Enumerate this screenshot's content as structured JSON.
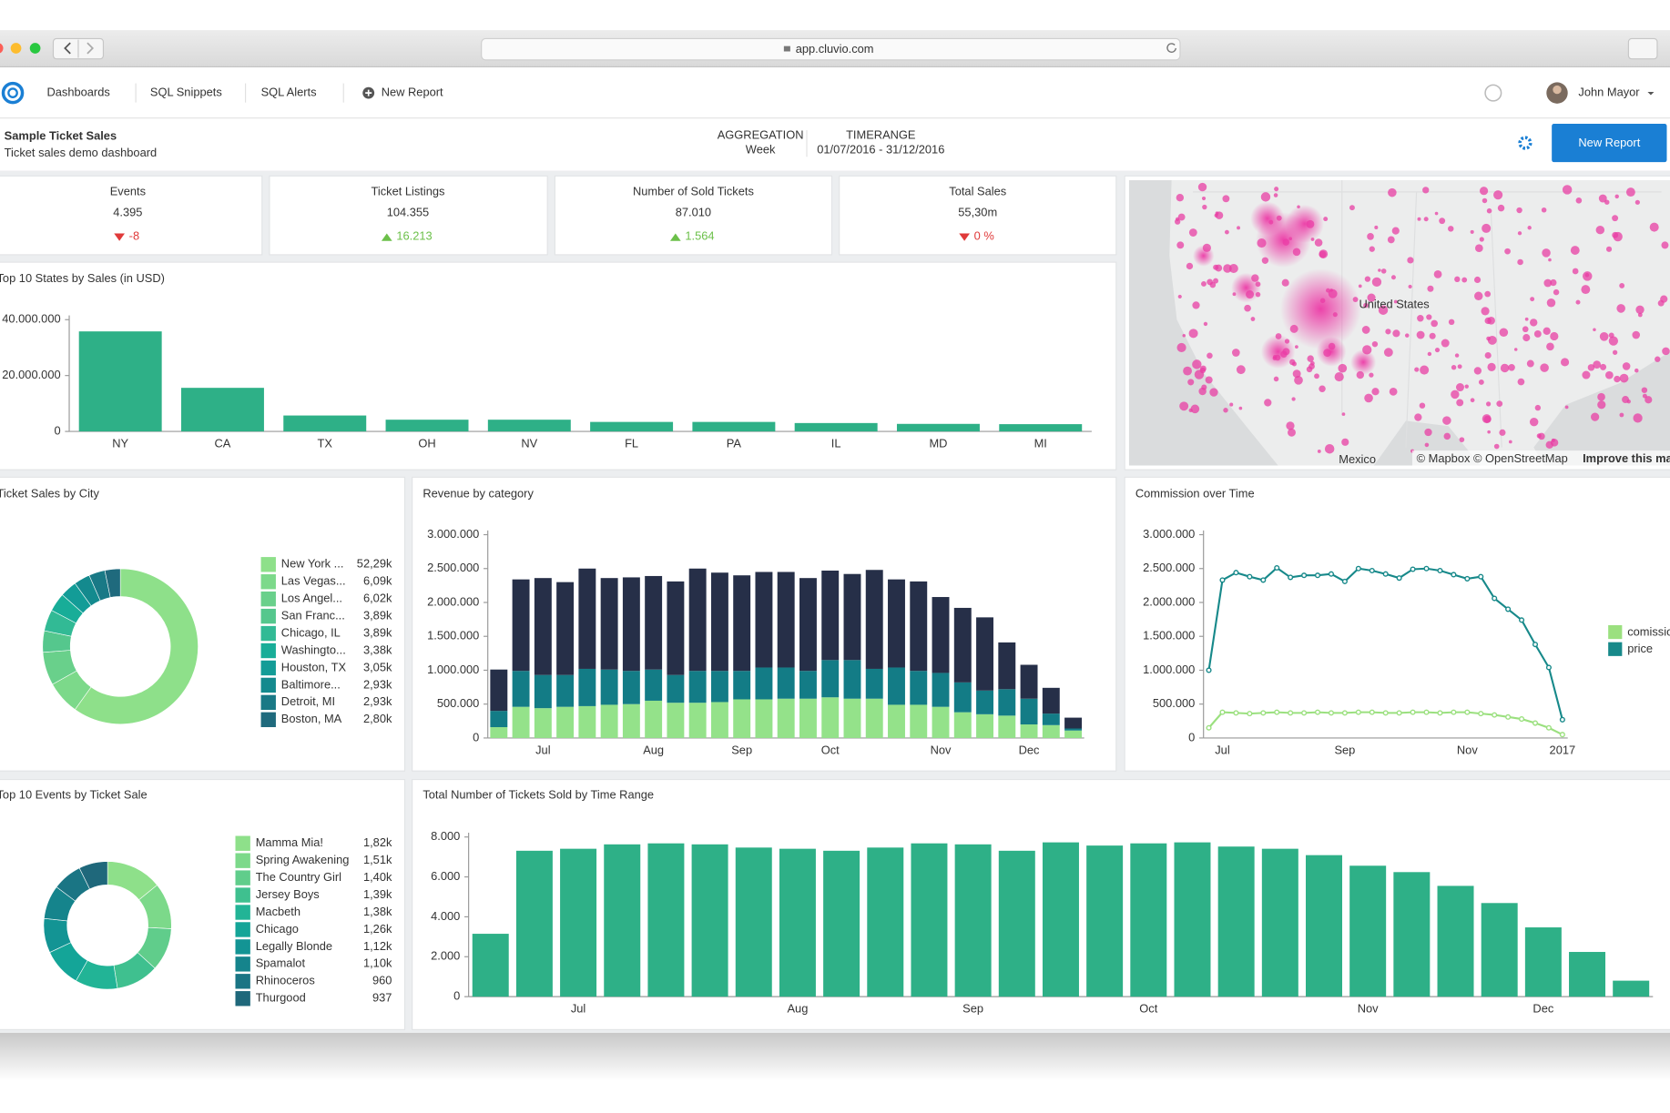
{
  "browser": {
    "url": "app.cluvio.com"
  },
  "nav": {
    "items": [
      "Dashboards",
      "SQL Snippets",
      "SQL Alerts",
      "New Report"
    ],
    "user": "John Mayor"
  },
  "header": {
    "title": "Sample Ticket Sales",
    "subtitle": "Ticket sales demo dashboard",
    "aggregation_label": "AGGREGATION",
    "aggregation": "Week",
    "timerange_label": "TIMERANGE",
    "timerange": "01/07/2016 - 31/12/2016",
    "button": "New Report"
  },
  "kpis": [
    {
      "label": "Events",
      "value": "4.395",
      "change": "-8",
      "direction": "down",
      "color": "#e03a3a"
    },
    {
      "label": "Ticket Listings",
      "value": "104.355",
      "change": "16.213",
      "direction": "up",
      "color": "#6cc04a"
    },
    {
      "label": "Number of Sold Tickets",
      "value": "87.010",
      "change": "1.564",
      "direction": "up",
      "color": "#6cc04a"
    },
    {
      "label": "Total Sales",
      "value": "55,30m",
      "change": "0 %",
      "direction": "down",
      "color": "#e03a3a"
    }
  ],
  "map": {
    "labels": [
      "United States",
      "Mexico"
    ],
    "attribution": "© Mapbox © OpenStreetMap",
    "link": "Improve this map"
  },
  "chart_data": [
    {
      "type": "bar",
      "title": "Top 10 States by Sales (in USD)",
      "categories": [
        "NY",
        "CA",
        "TX",
        "OH",
        "NV",
        "FL",
        "PA",
        "IL",
        "MD",
        "MI"
      ],
      "values": [
        35800000,
        15600000,
        5700000,
        4200000,
        4200000,
        3400000,
        3400000,
        3000000,
        2700000,
        2600000
      ],
      "color": "#2eb087",
      "ylim": [
        0,
        40000000
      ],
      "yticks": [
        0,
        {
          "value": 20000000,
          "label": "20.000.000"
        },
        {
          "value": 40000000,
          "label": "40.000.000"
        }
      ]
    },
    {
      "type": "donut",
      "title": "Ticket Sales by City",
      "categories": [
        "New York ...",
        "Las Vegas...",
        "Los Angel...",
        "San Franc...",
        "Chicago, IL",
        "Washingto...",
        "Houston, TX",
        "Baltimore...",
        "Detroit, MI",
        "Boston, MA"
      ],
      "values": [
        52290,
        6090,
        6020,
        3890,
        3890,
        3380,
        3050,
        2930,
        2930,
        2800
      ],
      "value_labels": [
        "52,29k",
        "6,09k",
        "6,02k",
        "3,89k",
        "3,89k",
        "3,38k",
        "3,05k",
        "2,93k",
        "2,93k",
        "2,80k"
      ],
      "colors": [
        "#8ee08a",
        "#7cd98a",
        "#69d08b",
        "#55c78d",
        "#32ba95",
        "#18ad98",
        "#139c97",
        "#148a8e",
        "#197986",
        "#1f6a7d"
      ]
    },
    {
      "type": "stacked_bar",
      "title": "Revenue by category",
      "categories": [
        null,
        null,
        "Jul",
        null,
        null,
        null,
        null,
        "Aug",
        null,
        null,
        null,
        "Sep",
        null,
        null,
        null,
        "Oct",
        null,
        null,
        null,
        null,
        "Nov",
        null,
        null,
        null,
        "Dec",
        null,
        null
      ],
      "series": [
        {
          "color": "#94e28a",
          "values": [
            160000,
            460000,
            440000,
            460000,
            470000,
            490000,
            500000,
            550000,
            520000,
            520000,
            530000,
            570000,
            570000,
            580000,
            580000,
            600000,
            580000,
            580000,
            490000,
            490000,
            460000,
            380000,
            350000,
            330000,
            200000,
            190000,
            110000
          ]
        },
        {
          "color": "#137c86",
          "values": [
            240000,
            530000,
            490000,
            470000,
            550000,
            520000,
            490000,
            460000,
            410000,
            470000,
            460000,
            420000,
            470000,
            460000,
            410000,
            550000,
            570000,
            440000,
            550000,
            500000,
            500000,
            440000,
            350000,
            390000,
            380000,
            170000,
            30000
          ]
        },
        {
          "color": "#262f48",
          "values": [
            610000,
            1350000,
            1430000,
            1370000,
            1480000,
            1350000,
            1380000,
            1380000,
            1380000,
            1510000,
            1450000,
            1410000,
            1410000,
            1410000,
            1370000,
            1320000,
            1270000,
            1460000,
            1300000,
            1320000,
            1120000,
            1100000,
            1080000,
            690000,
            500000,
            380000,
            160000
          ]
        }
      ],
      "ylim": [
        0,
        3000000
      ],
      "yticks": [
        0,
        {
          "value": 500000,
          "label": "500.000"
        },
        {
          "value": 1000000,
          "label": "1.000.000"
        },
        {
          "value": 1500000,
          "label": "1.500.000"
        },
        {
          "value": 2000000,
          "label": "2.000.000"
        },
        {
          "value": 2500000,
          "label": "2.500.000"
        },
        {
          "value": 3000000,
          "label": "3.000.000"
        }
      ]
    },
    {
      "type": "line",
      "title": "Commission over Time",
      "categories": [
        null,
        "Jul",
        null,
        null,
        null,
        null,
        null,
        null,
        null,
        null,
        "Sep",
        null,
        null,
        null,
        null,
        null,
        null,
        null,
        null,
        "Nov",
        null,
        null,
        null,
        null,
        null,
        null,
        "2017"
      ],
      "series": [
        {
          "name": "comission",
          "color": "#9be07f",
          "values": [
            150000,
            380000,
            370000,
            360000,
            370000,
            380000,
            370000,
            370000,
            380000,
            370000,
            370000,
            380000,
            380000,
            370000,
            370000,
            380000,
            380000,
            370000,
            380000,
            380000,
            360000,
            340000,
            310000,
            280000,
            220000,
            150000,
            50000
          ]
        },
        {
          "name": "price",
          "color": "#17898a",
          "values": [
            1000000,
            2330000,
            2440000,
            2380000,
            2330000,
            2510000,
            2370000,
            2400000,
            2400000,
            2420000,
            2310000,
            2500000,
            2470000,
            2420000,
            2360000,
            2490000,
            2500000,
            2470000,
            2410000,
            2350000,
            2380000,
            2060000,
            1900000,
            1740000,
            1380000,
            1040000,
            270000
          ]
        }
      ],
      "ylim": [
        0,
        3000000
      ],
      "yticks": [
        0,
        {
          "value": 500000,
          "label": "500.000"
        },
        {
          "value": 1000000,
          "label": "1.000.000"
        },
        {
          "value": 1500000,
          "label": "1.500.000"
        },
        {
          "value": 2000000,
          "label": "2.000.000"
        },
        {
          "value": 2500000,
          "label": "2.500.000"
        },
        {
          "value": 3000000,
          "label": "3.000.000"
        }
      ]
    },
    {
      "type": "donut",
      "title": "Top 10 Events by Ticket Sale",
      "categories": [
        "Mamma Mia!",
        "Spring Awakening",
        "The Country Girl",
        "Jersey Boys",
        "Macbeth",
        "Chicago",
        "Legally Blonde",
        "Spamalot",
        "Rhinoceros",
        "Thurgood"
      ],
      "values": [
        1820,
        1510,
        1400,
        1390,
        1380,
        1260,
        1120,
        1100,
        960,
        937
      ],
      "value_labels": [
        "1,82k",
        "1,51k",
        "1,40k",
        "1,39k",
        "1,38k",
        "1,26k",
        "1,12k",
        "1,10k",
        "960",
        "937"
      ],
      "colors": [
        "#8ee08a",
        "#7cd98a",
        "#60cd8b",
        "#3fc08f",
        "#22b496",
        "#14a598",
        "#139494",
        "#15848c",
        "#1a7584",
        "#1f687b"
      ]
    },
    {
      "type": "bar",
      "title": "Total Number of Tickets Sold by Time Range",
      "categories": [
        null,
        null,
        "Jul",
        null,
        null,
        null,
        null,
        "Aug",
        null,
        null,
        null,
        "Sep",
        null,
        null,
        null,
        "Oct",
        null,
        null,
        null,
        null,
        "Nov",
        null,
        null,
        null,
        "Dec",
        null,
        null
      ],
      "values": [
        3150,
        7310,
        7410,
        7630,
        7680,
        7630,
        7470,
        7410,
        7310,
        7470,
        7680,
        7630,
        7310,
        7730,
        7570,
        7680,
        7730,
        7520,
        7410,
        7090,
        6560,
        6240,
        5550,
        4690,
        3470,
        2240,
        800
      ],
      "color": "#2eb087",
      "ylim": [
        0,
        8000
      ],
      "yticks": [
        0,
        {
          "value": 2000,
          "label": "2.000"
        },
        {
          "value": 4000,
          "label": "4.000"
        },
        {
          "value": 6000,
          "label": "6.000"
        },
        {
          "value": 8000,
          "label": "8.000"
        }
      ]
    }
  ]
}
